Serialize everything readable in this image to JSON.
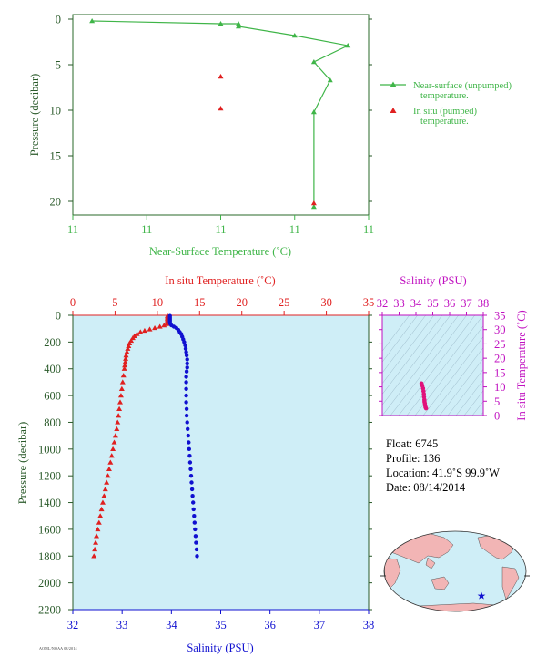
{
  "chart_data": [
    {
      "type": "line",
      "xlabel": "Near-Surface Temperature (˚C)",
      "ylabel": "Pressure (decibar)",
      "x_tick_labels": [
        "11",
        "11",
        "11",
        "11",
        "11"
      ],
      "y_ticks": [
        0,
        5,
        10,
        15,
        20
      ],
      "xlim": [
        10.9,
        11.1
      ],
      "ylim": [
        21.5,
        -0.5
      ],
      "series": [
        {
          "name": "Near-surface (unpumped) temperature.",
          "color": "#3fb548",
          "marker": "triangle",
          "points": [
            [
              10.913,
              0.2
            ],
            [
              11.0,
              0.5
            ],
            [
              11.012,
              0.5
            ],
            [
              11.012,
              0.8
            ],
            [
              11.05,
              1.8
            ],
            [
              11.086,
              2.9
            ],
            [
              11.063,
              4.7
            ],
            [
              11.074,
              6.7
            ],
            [
              11.063,
              10.2
            ],
            [
              11.063,
              20.6
            ]
          ]
        },
        {
          "name": "In situ (pumped) temperature.",
          "color": "#e02020",
          "marker": "triangle",
          "points": [
            [
              11.0,
              6.3
            ],
            [
              11.0,
              9.8
            ],
            [
              11.063,
              20.2
            ]
          ]
        }
      ],
      "legend_position": "right"
    },
    {
      "type": "scatter",
      "top_xlabel": "In situ Temperature (˚C)",
      "top_ticks": [
        0,
        5,
        10,
        15,
        20,
        25,
        30,
        35
      ],
      "bottom_xlabel": "Salinity (PSU)",
      "bottom_ticks": [
        32,
        33,
        34,
        35,
        36,
        37,
        38
      ],
      "ylabel": "Pressure (decibar)",
      "y_ticks": [
        0,
        200,
        400,
        600,
        800,
        1000,
        1200,
        1400,
        1600,
        1800,
        2000,
        2200
      ],
      "temperature_xlim": [
        0,
        35
      ],
      "salinity_xlim": [
        32,
        38
      ],
      "ylim": [
        2200,
        0
      ],
      "temperature_profile": {
        "color": "#e02020",
        "points": [
          [
            11.2,
            5
          ],
          [
            11.2,
            15
          ],
          [
            11.2,
            25
          ],
          [
            11.2,
            35
          ],
          [
            11.2,
            45
          ],
          [
            11.2,
            55
          ],
          [
            11.1,
            65
          ],
          [
            10.8,
            75
          ],
          [
            10.3,
            85
          ],
          [
            9.7,
            95
          ],
          [
            9.1,
            105
          ],
          [
            8.5,
            115
          ],
          [
            8.0,
            125
          ],
          [
            7.6,
            140
          ],
          [
            7.3,
            155
          ],
          [
            7.1,
            170
          ],
          [
            6.9,
            190
          ],
          [
            6.7,
            210
          ],
          [
            6.6,
            230
          ],
          [
            6.5,
            250
          ],
          [
            6.4,
            275
          ],
          [
            6.3,
            300
          ],
          [
            6.25,
            325
          ],
          [
            6.2,
            350
          ],
          [
            6.15,
            375
          ],
          [
            6.1,
            400
          ],
          [
            6.0,
            450
          ],
          [
            5.9,
            500
          ],
          [
            5.8,
            550
          ],
          [
            5.7,
            600
          ],
          [
            5.6,
            650
          ],
          [
            5.5,
            700
          ],
          [
            5.4,
            750
          ],
          [
            5.3,
            800
          ],
          [
            5.2,
            850
          ],
          [
            5.05,
            900
          ],
          [
            4.9,
            950
          ],
          [
            4.75,
            1000
          ],
          [
            4.6,
            1050
          ],
          [
            4.45,
            1100
          ],
          [
            4.3,
            1150
          ],
          [
            4.15,
            1200
          ],
          [
            4.0,
            1250
          ],
          [
            3.85,
            1300
          ],
          [
            3.7,
            1350
          ],
          [
            3.55,
            1400
          ],
          [
            3.4,
            1450
          ],
          [
            3.25,
            1500
          ],
          [
            3.1,
            1550
          ],
          [
            2.95,
            1600
          ],
          [
            2.8,
            1650
          ],
          [
            2.7,
            1700
          ],
          [
            2.6,
            1750
          ],
          [
            2.5,
            1800
          ]
        ]
      },
      "salinity_profile": {
        "color": "#1010d0",
        "points": [
          [
            33.97,
            5
          ],
          [
            33.97,
            15
          ],
          [
            33.97,
            25
          ],
          [
            33.97,
            35
          ],
          [
            33.97,
            45
          ],
          [
            33.97,
            55
          ],
          [
            33.98,
            65
          ],
          [
            34.0,
            75
          ],
          [
            34.05,
            85
          ],
          [
            34.1,
            95
          ],
          [
            34.14,
            110
          ],
          [
            34.17,
            125
          ],
          [
            34.2,
            140
          ],
          [
            34.22,
            160
          ],
          [
            34.24,
            180
          ],
          [
            34.26,
            200
          ],
          [
            34.28,
            225
          ],
          [
            34.29,
            250
          ],
          [
            34.3,
            275
          ],
          [
            34.31,
            300
          ],
          [
            34.32,
            330
          ],
          [
            34.32,
            360
          ],
          [
            34.32,
            390
          ],
          [
            34.31,
            420
          ],
          [
            34.3,
            460
          ],
          [
            34.3,
            500
          ],
          [
            34.3,
            550
          ],
          [
            34.3,
            600
          ],
          [
            34.3,
            650
          ],
          [
            34.31,
            700
          ],
          [
            34.31,
            750
          ],
          [
            34.32,
            800
          ],
          [
            34.33,
            850
          ],
          [
            34.34,
            900
          ],
          [
            34.35,
            950
          ],
          [
            34.36,
            1000
          ],
          [
            34.37,
            1050
          ],
          [
            34.38,
            1100
          ],
          [
            34.39,
            1150
          ],
          [
            34.4,
            1200
          ],
          [
            34.41,
            1250
          ],
          [
            34.42,
            1300
          ],
          [
            34.43,
            1350
          ],
          [
            34.44,
            1400
          ],
          [
            34.45,
            1450
          ],
          [
            34.46,
            1500
          ],
          [
            34.47,
            1550
          ],
          [
            34.48,
            1600
          ],
          [
            34.49,
            1650
          ],
          [
            34.5,
            1700
          ],
          [
            34.51,
            1750
          ],
          [
            34.52,
            1800
          ]
        ]
      },
      "background": "#cfeef7"
    },
    {
      "type": "scatter",
      "xlabel": "Salinity (PSU)",
      "x_ticks": [
        32,
        33,
        34,
        35,
        36,
        37,
        38
      ],
      "ylabel": "In situ Temperature (˚C)",
      "y_ticks": [
        0,
        5,
        10,
        15,
        20,
        25,
        30,
        35
      ],
      "color": "#e0107a",
      "points": [
        [
          34.33,
          11.2
        ],
        [
          34.38,
          10.5
        ],
        [
          34.42,
          9.5
        ],
        [
          34.45,
          8.5
        ],
        [
          34.47,
          7.5
        ],
        [
          34.48,
          6.5
        ],
        [
          34.5,
          5.5
        ],
        [
          34.51,
          4.8
        ],
        [
          34.53,
          4.2
        ],
        [
          34.55,
          3.5
        ],
        [
          34.57,
          2.9
        ],
        [
          34.6,
          2.5
        ]
      ],
      "background": "#cfeef7"
    }
  ],
  "info": {
    "float": "Float:  6745",
    "profile": "Profile:  136",
    "location": "Location:  41.9˚S  99.9˚W",
    "date": "Date:  08/14/2014"
  },
  "footer_tag": "AOML/NOAA 08/2014",
  "map": {
    "land_color": "#f2b5b5",
    "ocean_color": "#cfeef7",
    "marker": "star",
    "marker_color": "#1010d0"
  }
}
